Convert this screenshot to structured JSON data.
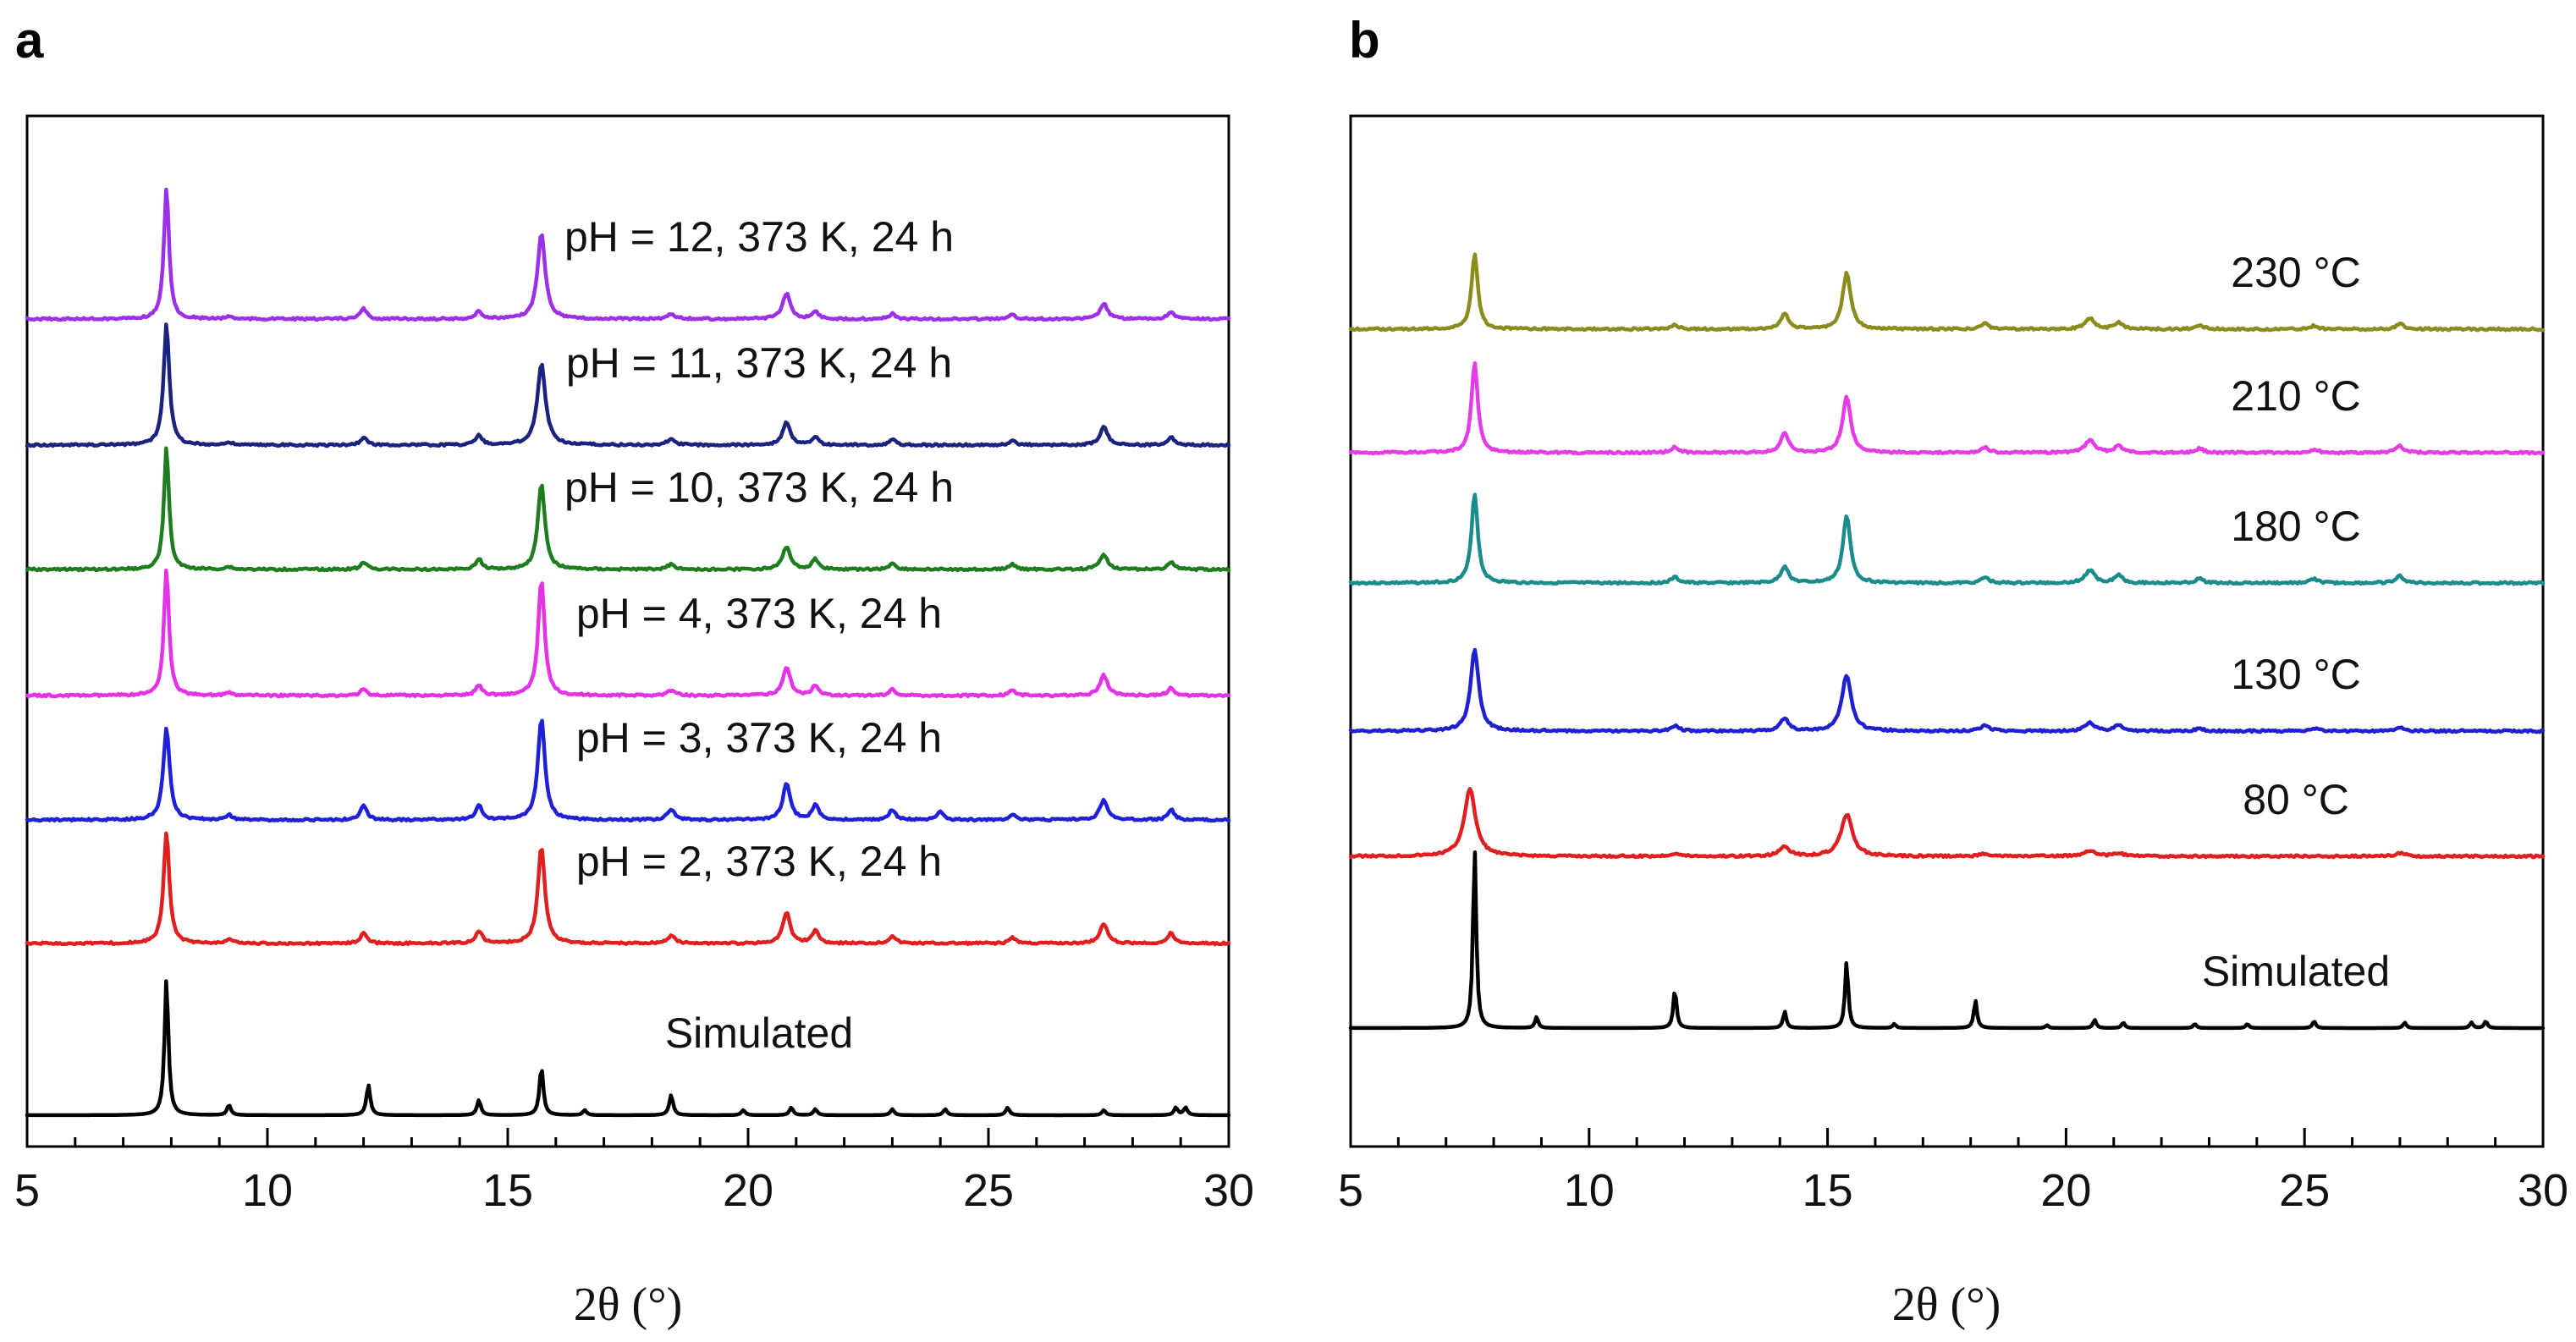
{
  "chart_data": [
    {
      "panel": "a",
      "type": "line",
      "xlabel": "2θ (°)",
      "ylabel": "",
      "xlim": [
        5,
        30
      ],
      "xticks": [
        5,
        10,
        15,
        20,
        25,
        30
      ],
      "series": [
        {
          "name": "pH = 12, 373 K, 24 h",
          "color": "#9b30e8",
          "offset": 6,
          "peaks": [
            [
              7.9,
              2.6,
              0.08
            ],
            [
              9.2,
              0.05,
              0.1
            ],
            [
              12.0,
              0.2,
              0.1
            ],
            [
              14.4,
              0.15,
              0.1
            ],
            [
              15.7,
              1.7,
              0.12
            ],
            [
              18.4,
              0.1,
              0.12
            ],
            [
              20.8,
              0.5,
              0.12
            ],
            [
              21.4,
              0.15,
              0.1
            ],
            [
              23.0,
              0.1,
              0.1
            ],
            [
              25.5,
              0.08,
              0.1
            ],
            [
              27.4,
              0.3,
              0.12
            ],
            [
              28.8,
              0.15,
              0.1
            ]
          ]
        },
        {
          "name": "pH = 11, 373 K, 24 h",
          "color": "#1a237e",
          "offset": 5,
          "peaks": [
            [
              7.9,
              2.4,
              0.09
            ],
            [
              9.2,
              0.05,
              0.1
            ],
            [
              12.0,
              0.15,
              0.1
            ],
            [
              14.4,
              0.2,
              0.1
            ],
            [
              15.7,
              1.6,
              0.13
            ],
            [
              18.4,
              0.12,
              0.12
            ],
            [
              20.8,
              0.45,
              0.12
            ],
            [
              21.4,
              0.15,
              0.1
            ],
            [
              23.0,
              0.12,
              0.1
            ],
            [
              25.5,
              0.1,
              0.1
            ],
            [
              27.4,
              0.35,
              0.12
            ],
            [
              28.8,
              0.15,
              0.1
            ]
          ]
        },
        {
          "name": "pH = 10, 373 K, 24 h",
          "color": "#1e7d1e",
          "offset": 4,
          "peaks": [
            [
              7.9,
              2.4,
              0.08
            ],
            [
              9.2,
              0.05,
              0.1
            ],
            [
              12.0,
              0.15,
              0.1
            ],
            [
              14.4,
              0.2,
              0.1
            ],
            [
              15.7,
              1.7,
              0.11
            ],
            [
              18.4,
              0.1,
              0.12
            ],
            [
              20.8,
              0.45,
              0.12
            ],
            [
              21.4,
              0.2,
              0.1
            ],
            [
              23.0,
              0.12,
              0.1
            ],
            [
              25.5,
              0.1,
              0.1
            ],
            [
              27.4,
              0.3,
              0.12
            ],
            [
              28.8,
              0.15,
              0.1
            ]
          ]
        },
        {
          "name": "pH = 4, 373 K, 24 h",
          "color": "#e632e6",
          "offset": 3,
          "peaks": [
            [
              7.9,
              2.5,
              0.08
            ],
            [
              9.2,
              0.05,
              0.1
            ],
            [
              12.0,
              0.12,
              0.1
            ],
            [
              14.4,
              0.2,
              0.1
            ],
            [
              15.7,
              2.3,
              0.1
            ],
            [
              18.4,
              0.1,
              0.12
            ],
            [
              20.8,
              0.55,
              0.12
            ],
            [
              21.4,
              0.2,
              0.1
            ],
            [
              23.0,
              0.12,
              0.1
            ],
            [
              25.5,
              0.1,
              0.1
            ],
            [
              27.4,
              0.4,
              0.12
            ],
            [
              28.8,
              0.15,
              0.1
            ]
          ]
        },
        {
          "name": "pH = 3, 373 K, 24 h",
          "color": "#2020d8",
          "offset": 2,
          "peaks": [
            [
              7.9,
              1.8,
              0.1
            ],
            [
              9.2,
              0.1,
              0.1
            ],
            [
              12.0,
              0.3,
              0.1
            ],
            [
              14.4,
              0.3,
              0.1
            ],
            [
              15.7,
              2.0,
              0.11
            ],
            [
              18.4,
              0.2,
              0.12
            ],
            [
              20.8,
              0.7,
              0.12
            ],
            [
              21.4,
              0.3,
              0.1
            ],
            [
              23.0,
              0.2,
              0.1
            ],
            [
              24.0,
              0.15,
              0.1
            ],
            [
              25.5,
              0.12,
              0.1
            ],
            [
              27.4,
              0.4,
              0.12
            ],
            [
              28.8,
              0.2,
              0.1
            ]
          ]
        },
        {
          "name": "pH = 2, 373 K, 24 h",
          "color": "#e02020",
          "offset": 1,
          "peaks": [
            [
              7.9,
              2.2,
              0.09
            ],
            [
              9.2,
              0.08,
              0.1
            ],
            [
              12.0,
              0.2,
              0.1
            ],
            [
              14.4,
              0.25,
              0.1
            ],
            [
              15.7,
              1.9,
              0.11
            ],
            [
              18.4,
              0.15,
              0.12
            ],
            [
              20.8,
              0.6,
              0.12
            ],
            [
              21.4,
              0.25,
              0.1
            ],
            [
              23.0,
              0.15,
              0.1
            ],
            [
              25.5,
              0.12,
              0.1
            ],
            [
              27.4,
              0.4,
              0.12
            ],
            [
              28.8,
              0.2,
              0.1
            ]
          ]
        },
        {
          "name": "Simulated",
          "color": "#000000",
          "offset": 0,
          "peaks": [
            [
              7.9,
              2.7,
              0.06
            ],
            [
              9.2,
              0.2,
              0.06
            ],
            [
              12.1,
              0.6,
              0.06
            ],
            [
              14.4,
              0.3,
              0.06
            ],
            [
              15.7,
              0.95,
              0.06
            ],
            [
              16.6,
              0.1,
              0.06
            ],
            [
              18.4,
              0.4,
              0.06
            ],
            [
              19.9,
              0.1,
              0.06
            ],
            [
              20.9,
              0.15,
              0.06
            ],
            [
              21.4,
              0.12,
              0.06
            ],
            [
              23.0,
              0.12,
              0.06
            ],
            [
              24.1,
              0.12,
              0.06
            ],
            [
              25.4,
              0.15,
              0.06
            ],
            [
              27.4,
              0.1,
              0.06
            ],
            [
              28.9,
              0.15,
              0.06
            ],
            [
              29.1,
              0.15,
              0.06
            ]
          ]
        }
      ]
    },
    {
      "panel": "b",
      "type": "line",
      "xlabel": "2θ (°)",
      "ylabel": "",
      "xlim": [
        5,
        30
      ],
      "xticks": [
        5,
        10,
        15,
        20,
        25,
        30
      ],
      "series": [
        {
          "name": "230 °C",
          "color": "#8c8c1e",
          "offset": 5,
          "peaks": [
            [
              7.6,
              2.7,
              0.1
            ],
            [
              11.8,
              0.15,
              0.12
            ],
            [
              14.1,
              0.55,
              0.12
            ],
            [
              15.4,
              2.0,
              0.13
            ],
            [
              18.3,
              0.2,
              0.12
            ],
            [
              20.5,
              0.4,
              0.15
            ],
            [
              21.1,
              0.25,
              0.12
            ],
            [
              22.8,
              0.15,
              0.12
            ],
            [
              25.2,
              0.12,
              0.12
            ],
            [
              27.0,
              0.2,
              0.12
            ]
          ]
        },
        {
          "name": "210 °C",
          "color": "#e63ce6",
          "offset": 4,
          "peaks": [
            [
              7.6,
              3.2,
              0.1
            ],
            [
              11.8,
              0.2,
              0.12
            ],
            [
              14.1,
              0.7,
              0.12
            ],
            [
              15.4,
              2.0,
              0.13
            ],
            [
              18.3,
              0.2,
              0.12
            ],
            [
              20.5,
              0.45,
              0.15
            ],
            [
              21.1,
              0.25,
              0.12
            ],
            [
              22.8,
              0.15,
              0.12
            ],
            [
              25.2,
              0.12,
              0.12
            ],
            [
              27.0,
              0.25,
              0.12
            ]
          ]
        },
        {
          "name": "180 °C",
          "color": "#1a8c8c",
          "offset": 3,
          "peaks": [
            [
              7.6,
              3.2,
              0.1
            ],
            [
              11.8,
              0.2,
              0.12
            ],
            [
              14.1,
              0.6,
              0.12
            ],
            [
              15.4,
              2.4,
              0.12
            ],
            [
              18.3,
              0.2,
              0.12
            ],
            [
              20.5,
              0.45,
              0.15
            ],
            [
              21.1,
              0.3,
              0.12
            ],
            [
              22.8,
              0.15,
              0.12
            ],
            [
              25.2,
              0.15,
              0.12
            ],
            [
              27.0,
              0.25,
              0.12
            ]
          ]
        },
        {
          "name": "130 °C",
          "color": "#2020d0",
          "offset": 2,
          "peaks": [
            [
              7.6,
              2.9,
              0.13
            ],
            [
              11.8,
              0.2,
              0.12
            ],
            [
              14.1,
              0.45,
              0.13
            ],
            [
              15.4,
              2.0,
              0.15
            ],
            [
              18.3,
              0.2,
              0.14
            ],
            [
              20.5,
              0.3,
              0.15
            ],
            [
              21.1,
              0.2,
              0.14
            ],
            [
              22.8,
              0.1,
              0.12
            ],
            [
              25.2,
              0.1,
              0.12
            ],
            [
              27.0,
              0.15,
              0.12
            ]
          ]
        },
        {
          "name": "80 °C",
          "color": "#e02020",
          "offset": 1,
          "peaks": [
            [
              7.5,
              2.4,
              0.18
            ],
            [
              11.8,
              0.1,
              0.15
            ],
            [
              14.1,
              0.35,
              0.15
            ],
            [
              15.4,
              1.5,
              0.18
            ],
            [
              18.3,
              0.1,
              0.15
            ],
            [
              20.5,
              0.2,
              0.2
            ],
            [
              21.1,
              0.1,
              0.15
            ],
            [
              27.0,
              0.12,
              0.15
            ]
          ]
        },
        {
          "name": "Simulated",
          "color": "#000000",
          "offset": 0,
          "peaks": [
            [
              7.6,
              6.5,
              0.05
            ],
            [
              8.9,
              0.4,
              0.05
            ],
            [
              11.8,
              1.4,
              0.05
            ],
            [
              14.1,
              0.6,
              0.05
            ],
            [
              15.4,
              2.4,
              0.05
            ],
            [
              16.4,
              0.15,
              0.05
            ],
            [
              18.1,
              1.0,
              0.05
            ],
            [
              19.6,
              0.1,
              0.05
            ],
            [
              20.6,
              0.3,
              0.05
            ],
            [
              21.2,
              0.2,
              0.05
            ],
            [
              22.7,
              0.15,
              0.05
            ],
            [
              23.8,
              0.15,
              0.05
            ],
            [
              25.2,
              0.25,
              0.05
            ],
            [
              27.1,
              0.2,
              0.05
            ],
            [
              28.5,
              0.2,
              0.05
            ],
            [
              28.8,
              0.25,
              0.05
            ]
          ]
        }
      ]
    }
  ]
}
